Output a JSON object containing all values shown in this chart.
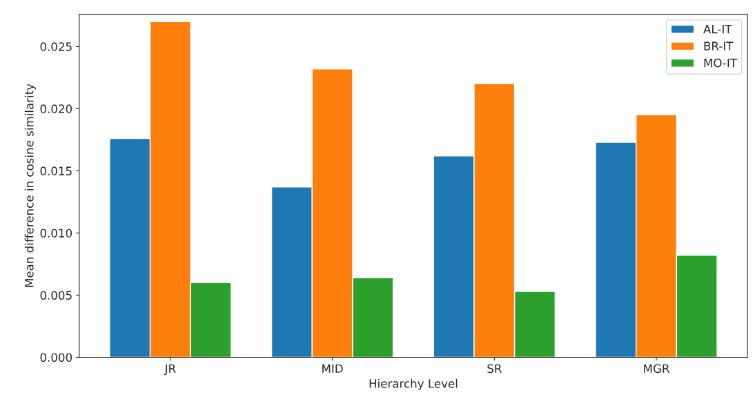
{
  "chart_data": {
    "type": "bar",
    "xlabel": "Hierarchy Level",
    "ylabel": "Mean difference in cosine similarity",
    "categories": [
      "JR",
      "MID",
      "SR",
      "MGR"
    ],
    "series": [
      {
        "name": "AL-IT",
        "color": "#1f77b4",
        "values": [
          0.0176,
          0.0137,
          0.0162,
          0.0173
        ]
      },
      {
        "name": "BR-IT",
        "color": "#ff7f0e",
        "values": [
          0.027,
          0.0232,
          0.022,
          0.0195
        ]
      },
      {
        "name": "MO-IT",
        "color": "#2ca02c",
        "values": [
          0.006,
          0.0064,
          0.0053,
          0.0082
        ]
      }
    ],
    "ylim": [
      0,
      0.0276
    ],
    "yticks": [
      {
        "value": 0,
        "label": "0.000"
      },
      {
        "value": 0.005,
        "label": "0.005"
      },
      {
        "value": 0.01,
        "label": "0.010"
      },
      {
        "value": 0.015,
        "label": "0.015"
      },
      {
        "value": 0.02,
        "label": "0.020"
      },
      {
        "value": 0.025,
        "label": "0.025"
      }
    ],
    "legend": "top right",
    "grid": false
  }
}
